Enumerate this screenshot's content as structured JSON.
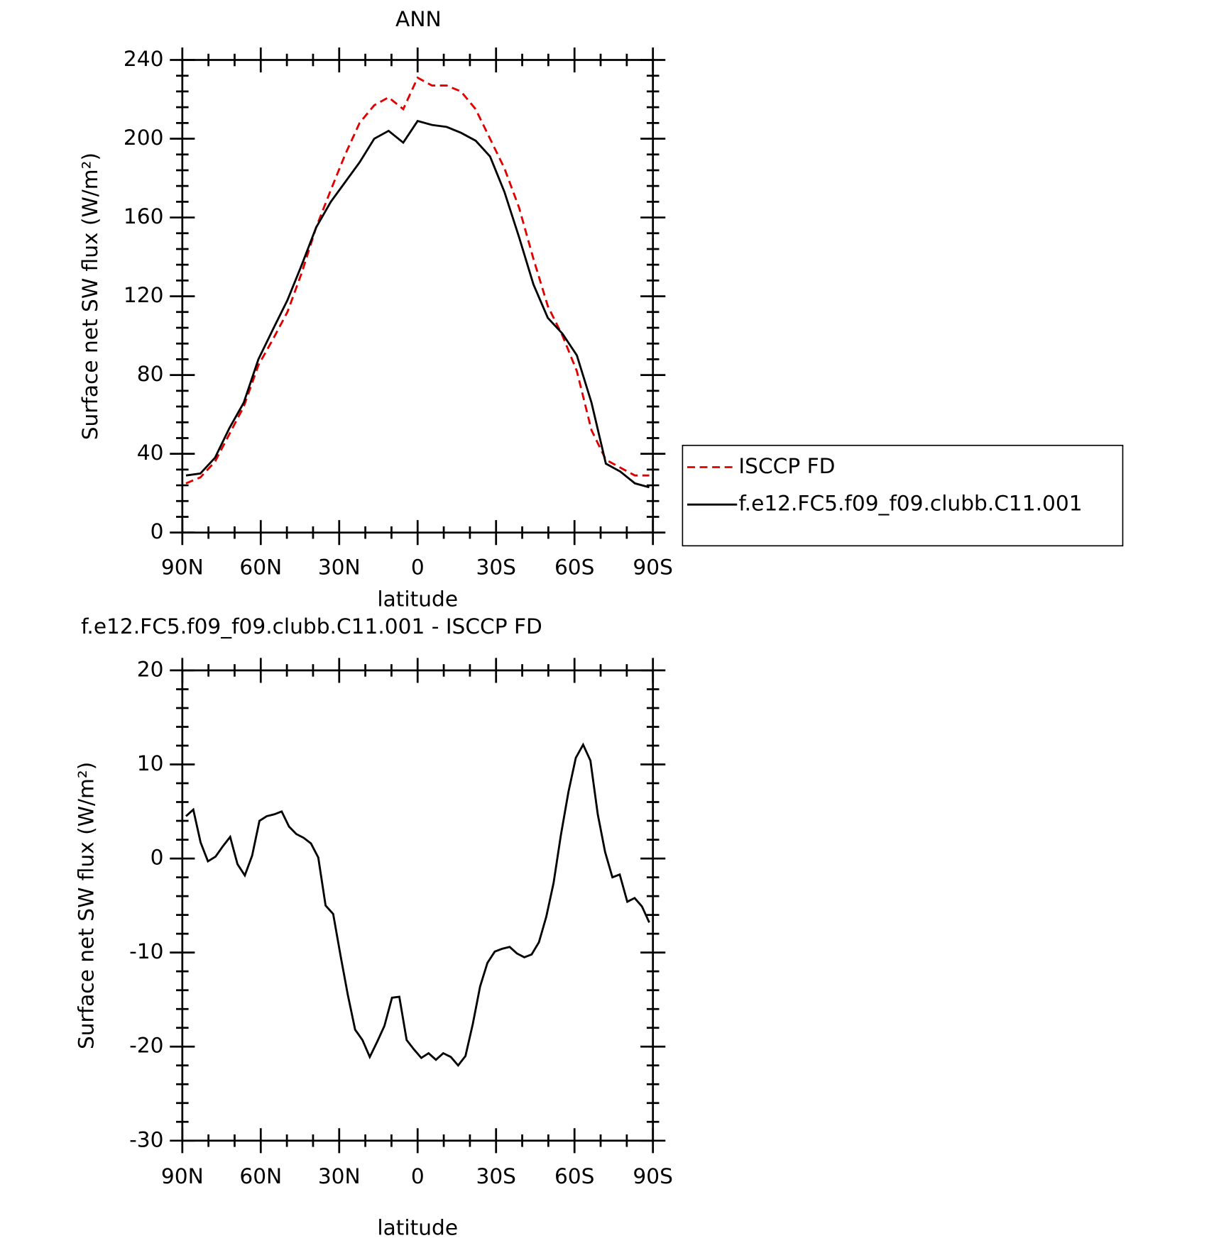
{
  "chart_data": [
    {
      "type": "line",
      "title": "ANN",
      "xlabel": "latitude",
      "ylabel": "Surface net SW flux (W/m²)",
      "x": [
        88.6,
        83.1,
        77.5,
        72.0,
        66.5,
        60.9,
        55.4,
        49.8,
        44.3,
        38.8,
        33.2,
        27.7,
        22.2,
        16.6,
        11.1,
        5.5,
        0,
        -5.5,
        -11.1,
        -16.6,
        -22.2,
        -27.7,
        -33.2,
        -38.8,
        -44.3,
        -49.8,
        -55.4,
        -60.9,
        -66.5,
        -72.0,
        -77.5,
        -83.1,
        -88.6
      ],
      "series": [
        {
          "name": "ISCCP FD",
          "color": "#e00000",
          "linestyle": "dashed",
          "values": [
            25,
            28,
            36,
            50,
            64,
            85,
            98,
            112,
            132,
            155,
            174,
            192,
            208,
            217,
            221,
            215,
            231,
            227,
            227,
            224,
            215,
            200,
            185,
            165,
            139,
            115,
            100,
            82,
            52,
            37,
            33,
            29,
            29
          ]
        },
        {
          "name": "f.e12.FC5.f09_f09.clubb.C11.001",
          "color": "#000000",
          "linestyle": "solid",
          "values": [
            29,
            30,
            38,
            53,
            66,
            88,
            103,
            118,
            136,
            155,
            168,
            178,
            188,
            200,
            204,
            198,
            209,
            207,
            206,
            203,
            199,
            191,
            173,
            150,
            126,
            109,
            101,
            90,
            66,
            35,
            31,
            25,
            23
          ]
        }
      ],
      "xlim": [
        90,
        -90
      ],
      "xticks": [
        {
          "value": 90,
          "label": "90N"
        },
        {
          "value": 60,
          "label": "60N"
        },
        {
          "value": 30,
          "label": "30N"
        },
        0,
        {
          "value": -30,
          "label": "30S"
        },
        {
          "value": -60,
          "label": "60S"
        },
        {
          "value": -90,
          "label": "90S"
        }
      ],
      "ylim": [
        0,
        240
      ],
      "yticks": [
        0,
        40,
        80,
        120,
        160,
        200,
        240
      ],
      "legend": "right"
    },
    {
      "type": "line",
      "title": "f.e12.FC5.f09_f09.clubb.C11.001 - ISCCP FD",
      "xlabel": "latitude",
      "ylabel": "Surface net SW flux (W/m²)",
      "x": [
        88.6,
        85.8,
        83.0,
        80.2,
        77.3,
        74.5,
        71.7,
        68.9,
        66.1,
        63.3,
        60.5,
        57.7,
        54.8,
        52.0,
        49.2,
        46.4,
        43.6,
        40.8,
        38.0,
        35.2,
        32.3,
        29.5,
        26.7,
        23.9,
        21.1,
        18.3,
        15.5,
        12.7,
        9.8,
        7.0,
        4.2,
        1.4,
        -1.4,
        -4.2,
        -7.0,
        -9.8,
        -12.7,
        -15.5,
        -18.3,
        -21.1,
        -23.9,
        -26.7,
        -29.5,
        -32.3,
        -35.2,
        -38.0,
        -40.8,
        -43.6,
        -46.4,
        -49.2,
        -52.0,
        -54.8,
        -57.7,
        -60.5,
        -63.3,
        -66.1,
        -68.9,
        -71.7,
        -74.5,
        -77.3,
        -80.2,
        -83.0,
        -85.8,
        -88.6
      ],
      "values": [
        4.5,
        5.2,
        1.7,
        -0.3,
        0.2,
        1.3,
        2.3,
        -0.6,
        -1.8,
        0.3,
        4.0,
        4.5,
        4.7,
        5.0,
        3.4,
        2.6,
        2.2,
        1.6,
        0.1,
        -5.0,
        -5.9,
        -10.3,
        -14.5,
        -18.2,
        -19.3,
        -21.1,
        -19.5,
        -17.8,
        -14.8,
        -14.7,
        -19.3,
        -20.3,
        -21.2,
        -20.7,
        -21.4,
        -20.7,
        -21.1,
        -22.0,
        -21.0,
        -17.6,
        -13.6,
        -11.1,
        -9.9,
        -9.6,
        -9.4,
        -10.1,
        -10.5,
        -10.2,
        -8.9,
        -6.2,
        -2.6,
        2.5,
        7.1,
        10.7,
        12.1,
        10.4,
        4.7,
        0.7,
        -2.0,
        -1.7,
        -4.6,
        -4.2,
        -5.1,
        -6.8
      ],
      "color": "#000000",
      "xlim": [
        90,
        -90
      ],
      "xticks": [
        {
          "value": 90,
          "label": "90N"
        },
        {
          "value": 60,
          "label": "60N"
        },
        {
          "value": 30,
          "label": "30N"
        },
        0,
        {
          "value": -30,
          "label": "30S"
        },
        {
          "value": -60,
          "label": "60S"
        },
        {
          "value": -90,
          "label": "90S"
        }
      ],
      "ylim": [
        -30,
        20
      ],
      "yticks": [
        -30,
        -20,
        -10,
        0,
        10,
        20
      ]
    }
  ]
}
